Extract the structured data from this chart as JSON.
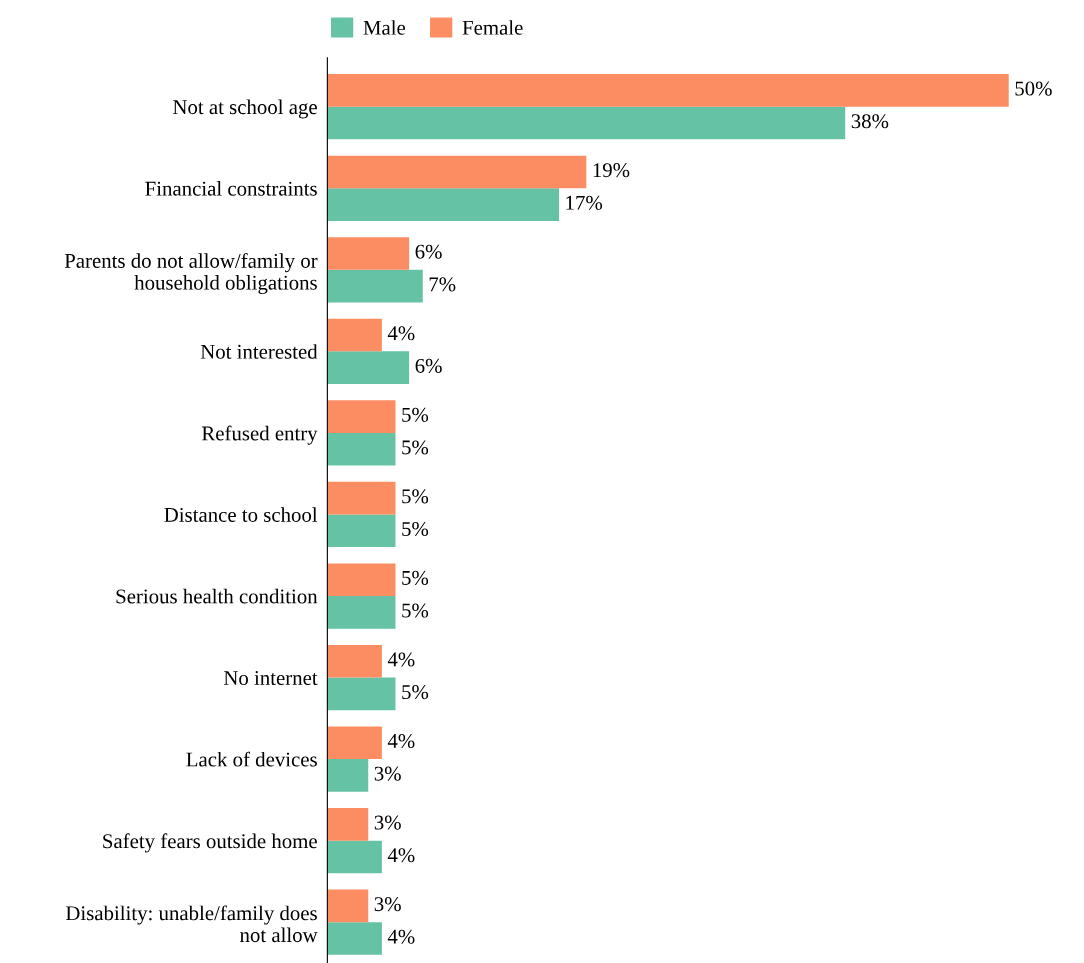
{
  "chart_data": {
    "type": "bar",
    "orientation": "horizontal",
    "categories": [
      "Not at school age",
      "Financial constraints",
      "Parents do not allow/family or\nhousehold obligations",
      "Not interested",
      "Refused entry",
      "Distance to school",
      "Serious health condition",
      "No internet",
      "Lack of devices",
      "Safety fears outside home",
      "Disability: unable/family does\nnot allow"
    ],
    "series": [
      {
        "name": "Male",
        "color": "#66c2a5",
        "values": [
          38,
          17,
          7,
          6,
          5,
          5,
          5,
          5,
          3,
          4,
          4
        ],
        "value_labels": [
          "38%",
          "17%",
          "7%",
          "6%",
          "5%",
          "5%",
          "5%",
          "5%",
          "3%",
          "4%",
          "4%"
        ]
      },
      {
        "name": "Female",
        "color": "#fc8d62",
        "values": [
          50,
          19,
          6,
          4,
          5,
          5,
          5,
          4,
          4,
          3,
          3
        ],
        "value_labels": [
          "50%",
          "19%",
          "6%",
          "4%",
          "5%",
          "5%",
          "5%",
          "4%",
          "4%",
          "3%",
          "3%"
        ]
      }
    ],
    "tick_labels": "y",
    "legend": "top",
    "grid": false
  }
}
